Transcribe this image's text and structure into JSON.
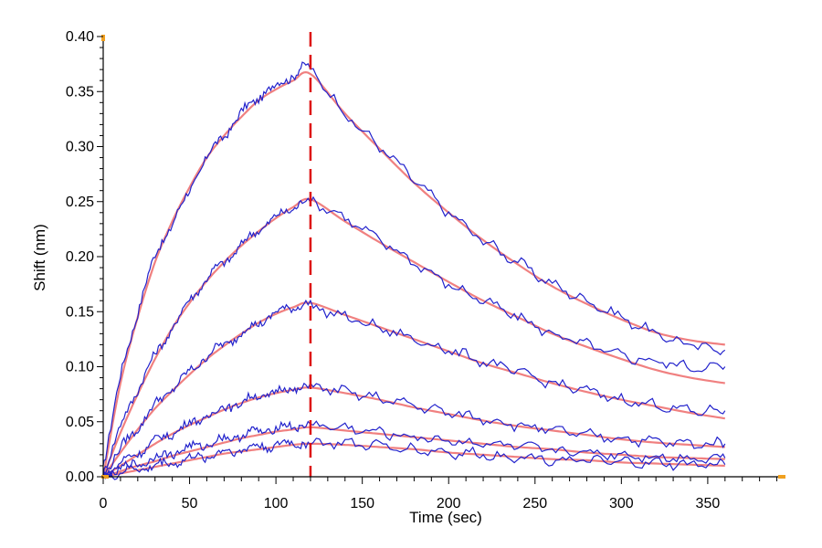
{
  "chart_data": {
    "type": "line",
    "title": "",
    "xlabel": "Time (sec)",
    "ylabel": "Shift (nm)",
    "xlim": [
      0,
      395
    ],
    "ylim": [
      0,
      0.4
    ],
    "x_ticks": [
      0,
      50,
      100,
      150,
      200,
      250,
      300,
      350
    ],
    "x_tick_labels": [
      "0",
      "50",
      "100",
      "150",
      "200",
      "250",
      "300",
      "350"
    ],
    "y_ticks": [
      0,
      0.05,
      0.1,
      0.15,
      0.2,
      0.25,
      0.3,
      0.35,
      0.4
    ],
    "y_tick_labels": [
      "0.00",
      "0.05",
      "0.10",
      "0.15",
      "0.20",
      "0.25",
      "0.30",
      "0.35",
      "0.40"
    ],
    "grid": false,
    "legend": "none",
    "marker_line": {
      "x": 120,
      "color": "#dd1111",
      "style": "dashed"
    },
    "colors": {
      "measured": "#2222cc",
      "fit": "#f08080",
      "axis_marker": "#f0a020"
    },
    "x": [
      0,
      10,
      20,
      30,
      40,
      50,
      60,
      70,
      80,
      90,
      100,
      110,
      120,
      140,
      160,
      180,
      200,
      220,
      240,
      260,
      280,
      300,
      320,
      340,
      360
    ],
    "series": [
      {
        "measured": [
          0.01,
          0.09,
          0.15,
          0.2,
          0.23,
          0.26,
          0.29,
          0.31,
          0.33,
          0.345,
          0.355,
          0.365,
          0.37,
          0.33,
          0.3,
          0.27,
          0.24,
          0.215,
          0.195,
          0.175,
          0.16,
          0.145,
          0.13,
          0.12,
          0.115
        ],
        "fit": [
          0.0,
          0.085,
          0.145,
          0.195,
          0.232,
          0.263,
          0.29,
          0.31,
          0.327,
          0.342,
          0.352,
          0.36,
          0.366,
          0.33,
          0.298,
          0.267,
          0.24,
          0.215,
          0.193,
          0.173,
          0.157,
          0.143,
          0.131,
          0.124,
          0.12
        ]
      },
      {
        "measured": [
          0.005,
          0.045,
          0.08,
          0.11,
          0.135,
          0.16,
          0.18,
          0.195,
          0.21,
          0.225,
          0.235,
          0.245,
          0.25,
          0.235,
          0.215,
          0.195,
          0.175,
          0.16,
          0.145,
          0.13,
          0.12,
          0.11,
          0.105,
          0.1,
          0.1
        ],
        "fit": [
          0.0,
          0.04,
          0.075,
          0.107,
          0.135,
          0.158,
          0.178,
          0.195,
          0.21,
          0.223,
          0.235,
          0.245,
          0.252,
          0.232,
          0.213,
          0.195,
          0.177,
          0.16,
          0.145,
          0.13,
          0.118,
          0.107,
          0.097,
          0.09,
          0.085
        ]
      },
      {
        "measured": [
          0.003,
          0.025,
          0.045,
          0.065,
          0.08,
          0.095,
          0.11,
          0.12,
          0.13,
          0.14,
          0.148,
          0.155,
          0.155,
          0.145,
          0.135,
          0.125,
          0.115,
          0.105,
          0.095,
          0.085,
          0.078,
          0.07,
          0.065,
          0.06,
          0.06
        ],
        "fit": [
          0.0,
          0.022,
          0.043,
          0.062,
          0.078,
          0.093,
          0.107,
          0.119,
          0.13,
          0.14,
          0.148,
          0.154,
          0.158,
          0.147,
          0.136,
          0.125,
          0.114,
          0.103,
          0.094,
          0.085,
          0.077,
          0.07,
          0.064,
          0.058,
          0.053
        ]
      },
      {
        "measured": [
          0.002,
          0.012,
          0.022,
          0.032,
          0.04,
          0.048,
          0.055,
          0.062,
          0.068,
          0.073,
          0.077,
          0.08,
          0.082,
          0.077,
          0.071,
          0.065,
          0.058,
          0.053,
          0.047,
          0.042,
          0.038,
          0.035,
          0.032,
          0.03,
          0.03
        ],
        "fit": [
          0.0,
          0.01,
          0.02,
          0.03,
          0.039,
          0.047,
          0.054,
          0.061,
          0.067,
          0.072,
          0.076,
          0.079,
          0.081,
          0.076,
          0.07,
          0.063,
          0.057,
          0.051,
          0.046,
          0.042,
          0.038,
          0.034,
          0.031,
          0.029,
          0.027
        ]
      },
      {
        "measured": [
          0.002,
          0.007,
          0.012,
          0.017,
          0.022,
          0.026,
          0.03,
          0.034,
          0.038,
          0.041,
          0.044,
          0.046,
          0.047,
          0.044,
          0.04,
          0.036,
          0.033,
          0.03,
          0.027,
          0.024,
          0.022,
          0.02,
          0.018,
          0.017,
          0.017
        ],
        "fit": [
          0.0,
          0.005,
          0.01,
          0.014,
          0.019,
          0.023,
          0.027,
          0.031,
          0.035,
          0.038,
          0.041,
          0.043,
          0.045,
          0.042,
          0.039,
          0.036,
          0.033,
          0.03,
          0.027,
          0.025,
          0.022,
          0.02,
          0.018,
          0.017,
          0.016
        ]
      },
      {
        "measured": [
          0.001,
          0.004,
          0.007,
          0.01,
          0.013,
          0.016,
          0.019,
          0.022,
          0.025,
          0.027,
          0.029,
          0.03,
          0.031,
          0.03,
          0.028,
          0.025,
          0.022,
          0.02,
          0.018,
          0.016,
          0.014,
          0.013,
          0.012,
          0.011,
          0.011
        ],
        "fit": [
          0.0,
          0.003,
          0.006,
          0.009,
          0.012,
          0.015,
          0.018,
          0.021,
          0.023,
          0.025,
          0.027,
          0.029,
          0.03,
          0.029,
          0.027,
          0.025,
          0.022,
          0.02,
          0.018,
          0.016,
          0.015,
          0.013,
          0.012,
          0.011,
          0.01
        ]
      }
    ]
  }
}
